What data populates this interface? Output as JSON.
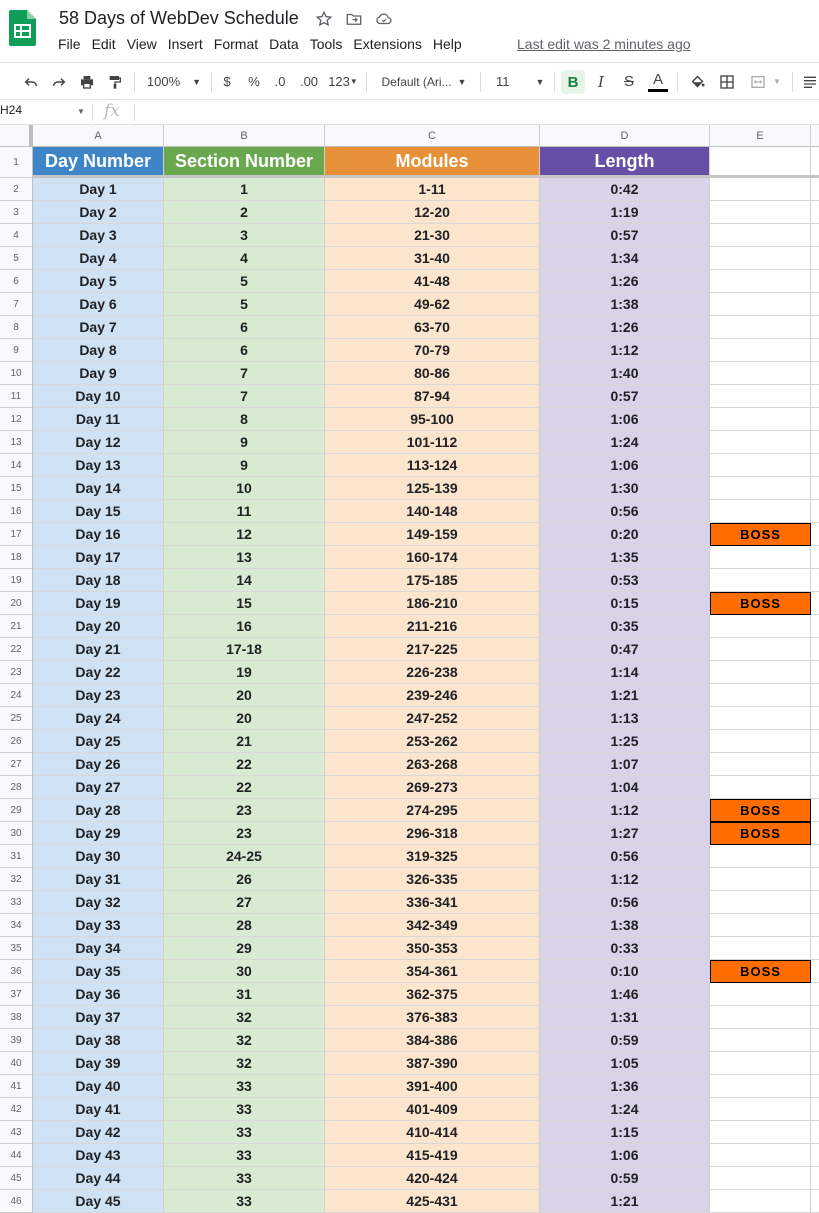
{
  "app": {
    "title": "58 Days of WebDev Schedule",
    "last_edit": "Last edit was 2 minutes ago",
    "menu": [
      "File",
      "Edit",
      "View",
      "Insert",
      "Format",
      "Data",
      "Tools",
      "Extensions",
      "Help"
    ]
  },
  "toolbar": {
    "zoom": "100%",
    "currency": "$",
    "percent": "%",
    "decrease_decimal": ".0",
    "increase_decimal": ".00",
    "more_formats": "123",
    "font": "Default (Ari...",
    "font_size": "11",
    "bold": "B",
    "italic": "I",
    "strike": "S",
    "text_color": "A"
  },
  "formula_bar": {
    "cell_ref": "H24",
    "fx": "fx",
    "value": ""
  },
  "columns": [
    "A",
    "B",
    "C",
    "D",
    "E"
  ],
  "header": {
    "day": "Day Number",
    "section": "Section Number",
    "modules": "Modules",
    "length": "Length"
  },
  "colors": {
    "day_header": "#3d85c6",
    "section_header": "#6aa84f",
    "modules_header": "#e69138",
    "length_header": "#674ea7",
    "day_fill": "#cfe2f3",
    "section_fill": "#d9ead3",
    "modules_fill": "#fce5cd",
    "length_fill": "#d9d2e9",
    "boss": "#ff6d01"
  },
  "boss_label": "BOSS",
  "rows": [
    {
      "row": "2",
      "day": "Day 1",
      "section": "1",
      "modules": "1-11",
      "length": "0:42",
      "boss": false
    },
    {
      "row": "3",
      "day": "Day 2",
      "section": "2",
      "modules": "12-20",
      "length": "1:19",
      "boss": false
    },
    {
      "row": "4",
      "day": "Day 3",
      "section": "3",
      "modules": "21-30",
      "length": "0:57",
      "boss": false
    },
    {
      "row": "5",
      "day": "Day 4",
      "section": "4",
      "modules": "31-40",
      "length": "1:34",
      "boss": false
    },
    {
      "row": "6",
      "day": "Day 5",
      "section": "5",
      "modules": "41-48",
      "length": "1:26",
      "boss": false
    },
    {
      "row": "7",
      "day": "Day 6",
      "section": "5",
      "modules": "49-62",
      "length": "1:38",
      "boss": false
    },
    {
      "row": "8",
      "day": "Day 7",
      "section": "6",
      "modules": "63-70",
      "length": "1:26",
      "boss": false
    },
    {
      "row": "9",
      "day": "Day 8",
      "section": "6",
      "modules": "70-79",
      "length": "1:12",
      "boss": false
    },
    {
      "row": "10",
      "day": "Day 9",
      "section": "7",
      "modules": "80-86",
      "length": "1:40",
      "boss": false
    },
    {
      "row": "11",
      "day": "Day 10",
      "section": "7",
      "modules": "87-94",
      "length": "0:57",
      "boss": false
    },
    {
      "row": "12",
      "day": "Day 11",
      "section": "8",
      "modules": "95-100",
      "length": "1:06",
      "boss": false
    },
    {
      "row": "13",
      "day": "Day 12",
      "section": "9",
      "modules": "101-112",
      "length": "1:24",
      "boss": false
    },
    {
      "row": "14",
      "day": "Day 13",
      "section": "9",
      "modules": "113-124",
      "length": "1:06",
      "boss": false
    },
    {
      "row": "15",
      "day": "Day 14",
      "section": "10",
      "modules": "125-139",
      "length": "1:30",
      "boss": false
    },
    {
      "row": "16",
      "day": "Day 15",
      "section": "11",
      "modules": "140-148",
      "length": "0:56",
      "boss": false
    },
    {
      "row": "17",
      "day": "Day 16",
      "section": "12",
      "modules": "149-159",
      "length": "0:20",
      "boss": true
    },
    {
      "row": "18",
      "day": "Day 17",
      "section": "13",
      "modules": "160-174",
      "length": "1:35",
      "boss": false
    },
    {
      "row": "19",
      "day": "Day 18",
      "section": "14",
      "modules": "175-185",
      "length": "0:53",
      "boss": false
    },
    {
      "row": "20",
      "day": "Day 19",
      "section": "15",
      "modules": "186-210",
      "length": "0:15",
      "boss": true
    },
    {
      "row": "21",
      "day": "Day 20",
      "section": "16",
      "modules": "211-216",
      "length": "0:35",
      "boss": false
    },
    {
      "row": "22",
      "day": "Day 21",
      "section": "17-18",
      "modules": "217-225",
      "length": "0:47",
      "boss": false
    },
    {
      "row": "23",
      "day": "Day 22",
      "section": "19",
      "modules": "226-238",
      "length": "1:14",
      "boss": false
    },
    {
      "row": "24",
      "day": "Day 23",
      "section": "20",
      "modules": "239-246",
      "length": "1:21",
      "boss": false
    },
    {
      "row": "25",
      "day": "Day 24",
      "section": "20",
      "modules": "247-252",
      "length": "1:13",
      "boss": false
    },
    {
      "row": "26",
      "day": "Day 25",
      "section": "21",
      "modules": "253-262",
      "length": "1:25",
      "boss": false
    },
    {
      "row": "27",
      "day": "Day 26",
      "section": "22",
      "modules": "263-268",
      "length": "1:07",
      "boss": false
    },
    {
      "row": "28",
      "day": "Day 27",
      "section": "22",
      "modules": "269-273",
      "length": "1:04",
      "boss": false
    },
    {
      "row": "29",
      "day": "Day 28",
      "section": "23",
      "modules": "274-295",
      "length": "1:12",
      "boss": true
    },
    {
      "row": "30",
      "day": "Day 29",
      "section": "23",
      "modules": "296-318",
      "length": "1:27",
      "boss": true
    },
    {
      "row": "31",
      "day": "Day 30",
      "section": "24-25",
      "modules": "319-325",
      "length": "0:56",
      "boss": false
    },
    {
      "row": "32",
      "day": "Day 31",
      "section": "26",
      "modules": "326-335",
      "length": "1:12",
      "boss": false
    },
    {
      "row": "33",
      "day": "Day 32",
      "section": "27",
      "modules": "336-341",
      "length": "0:56",
      "boss": false
    },
    {
      "row": "34",
      "day": "Day 33",
      "section": "28",
      "modules": "342-349",
      "length": "1:38",
      "boss": false
    },
    {
      "row": "35",
      "day": "Day 34",
      "section": "29",
      "modules": "350-353",
      "length": "0:33",
      "boss": false
    },
    {
      "row": "36",
      "day": "Day 35",
      "section": "30",
      "modules": "354-361",
      "length": "0:10",
      "boss": true
    },
    {
      "row": "37",
      "day": "Day 36",
      "section": "31",
      "modules": "362-375",
      "length": "1:46",
      "boss": false
    },
    {
      "row": "38",
      "day": "Day 37",
      "section": "32",
      "modules": "376-383",
      "length": "1:31",
      "boss": false
    },
    {
      "row": "39",
      "day": "Day 38",
      "section": "32",
      "modules": "384-386",
      "length": "0:59",
      "boss": false
    },
    {
      "row": "40",
      "day": "Day 39",
      "section": "32",
      "modules": "387-390",
      "length": "1:05",
      "boss": false
    },
    {
      "row": "41",
      "day": "Day 40",
      "section": "33",
      "modules": "391-400",
      "length": "1:36",
      "boss": false
    },
    {
      "row": "42",
      "day": "Day 41",
      "section": "33",
      "modules": "401-409",
      "length": "1:24",
      "boss": false
    },
    {
      "row": "43",
      "day": "Day 42",
      "section": "33",
      "modules": "410-414",
      "length": "1:15",
      "boss": false
    },
    {
      "row": "44",
      "day": "Day 43",
      "section": "33",
      "modules": "415-419",
      "length": "1:06",
      "boss": false
    },
    {
      "row": "45",
      "day": "Day 44",
      "section": "33",
      "modules": "420-424",
      "length": "0:59",
      "boss": false
    },
    {
      "row": "46",
      "day": "Day 45",
      "section": "33",
      "modules": "425-431",
      "length": "1:21",
      "boss": false
    }
  ]
}
